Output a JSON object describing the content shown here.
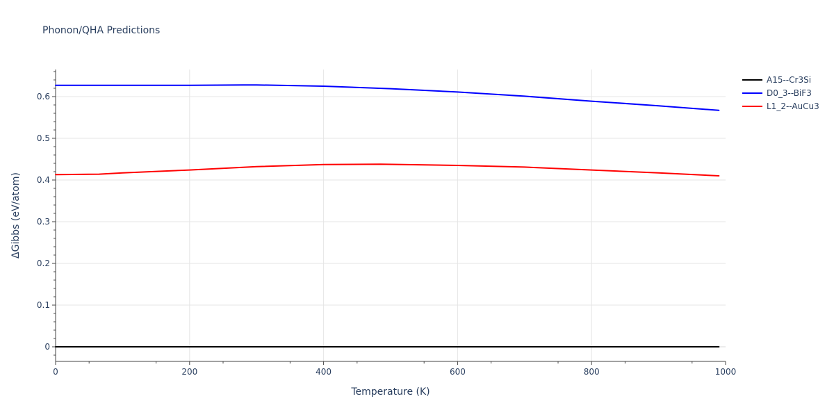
{
  "chart_data": {
    "type": "line",
    "title": "Phonon/QHA Predictions",
    "xlabel": "Temperature (K)",
    "ylabel": "ΔGibbs (eV/atom)",
    "xlim": [
      0,
      1000
    ],
    "ylim": [
      -0.035,
      0.665
    ],
    "xticks": [
      0,
      200,
      400,
      600,
      800,
      1000
    ],
    "yticks": [
      0,
      0.1,
      0.2,
      0.3,
      0.4,
      0.5,
      0.6
    ],
    "grid": true,
    "legend_position": "top-right",
    "series": [
      {
        "name": "A15--Cr3Si",
        "color": "#000000",
        "x": [
          0,
          100,
          200,
          300,
          400,
          500,
          600,
          700,
          800,
          900,
          990
        ],
        "y": [
          0,
          0,
          0,
          0,
          0,
          0,
          0,
          0,
          0,
          0,
          0
        ]
      },
      {
        "name": "D0_3--BiF3",
        "color": "#0000ff",
        "x": [
          0,
          100,
          165,
          200,
          280,
          300,
          400,
          500,
          600,
          700,
          800,
          900,
          990
        ],
        "y": [
          0.627,
          0.627,
          0.627,
          0.627,
          0.628,
          0.628,
          0.625,
          0.619,
          0.611,
          0.601,
          0.589,
          0.578,
          0.567
        ]
      },
      {
        "name": "L1_2--AuCu3",
        "color": "#ff0000",
        "x": [
          0,
          65,
          100,
          200,
          300,
          400,
          485,
          600,
          700,
          800,
          900,
          990
        ],
        "y": [
          0.413,
          0.414,
          0.417,
          0.424,
          0.432,
          0.437,
          0.438,
          0.435,
          0.431,
          0.424,
          0.417,
          0.41
        ]
      }
    ]
  }
}
